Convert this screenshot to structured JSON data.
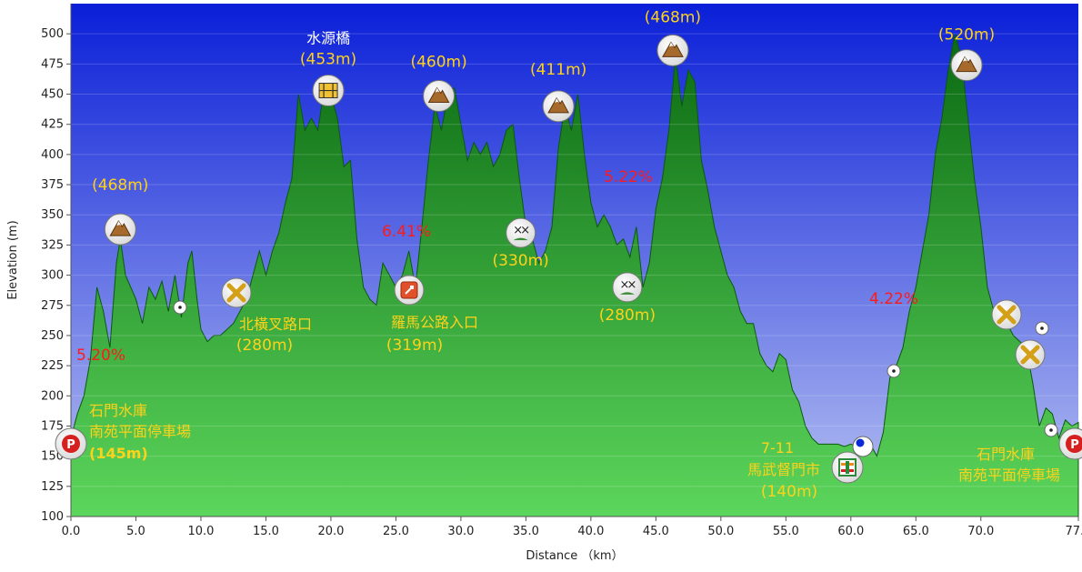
{
  "chart_data": {
    "type": "area",
    "xlabel": "Distance （km）",
    "ylabel": "Elevation (m)",
    "xlim": [
      0,
      77.5
    ],
    "ylim": [
      100,
      525
    ],
    "x_ticks": [
      "0.0",
      "5.0",
      "10.0",
      "15.0",
      "20.0",
      "25.0",
      "30.0",
      "35.0",
      "40.0",
      "45.0",
      "50.0",
      "55.0",
      "60.0",
      "65.0",
      "70.0",
      "77.5"
    ],
    "y_ticks": [
      "100",
      "125",
      "150",
      "175",
      "200",
      "225",
      "250",
      "275",
      "300",
      "325",
      "350",
      "375",
      "400",
      "425",
      "450",
      "475",
      "500"
    ],
    "grid": true,
    "colors": {
      "sky_top": "#0a1fd8",
      "sky_bottom": "#b9c3f2",
      "fill_top": "#0b6a12",
      "fill_bottom": "#5cd65c",
      "peak_label": "#ffd21a",
      "grade_label": "#ff1a1a"
    },
    "profile": {
      "x": [
        0.0,
        0.5,
        1.0,
        1.5,
        2.0,
        2.5,
        3.0,
        3.5,
        3.8,
        4.2,
        5.0,
        5.5,
        6.0,
        6.5,
        7.0,
        7.5,
        8.0,
        8.5,
        9.0,
        9.3,
        9.7,
        10.0,
        10.5,
        11.0,
        11.5,
        12.0,
        12.5,
        13.0,
        13.5,
        14.0,
        14.5,
        15.0,
        15.5,
        16.0,
        16.5,
        17.0,
        17.5,
        18.0,
        18.5,
        19.0,
        19.5,
        20.0,
        20.5,
        21.0,
        21.5,
        22.0,
        22.5,
        23.0,
        23.5,
        24.0,
        24.5,
        25.0,
        25.5,
        26.0,
        26.5,
        27.0,
        27.5,
        28.0,
        28.5,
        29.0,
        29.5,
        30.0,
        30.5,
        31.0,
        31.5,
        32.0,
        32.5,
        33.0,
        33.5,
        34.0,
        34.5,
        35.0,
        35.5,
        36.0,
        36.5,
        37.0,
        37.5,
        38.0,
        38.5,
        39.0,
        39.5,
        40.0,
        40.5,
        41.0,
        41.5,
        42.0,
        42.5,
        43.0,
        43.5,
        44.0,
        44.5,
        45.0,
        45.5,
        46.0,
        46.5,
        47.0,
        47.5,
        48.0,
        48.5,
        49.0,
        49.5,
        50.0,
        50.5,
        51.0,
        51.5,
        52.0,
        52.5,
        53.0,
        53.5,
        54.0,
        54.5,
        55.0,
        55.5,
        56.0,
        56.5,
        57.0,
        57.5,
        58.0,
        58.5,
        59.0,
        59.5,
        60.0,
        60.5,
        61.0,
        61.5,
        62.0,
        62.5,
        63.0,
        63.5,
        64.0,
        64.5,
        65.0,
        65.5,
        66.0,
        66.5,
        67.0,
        67.5,
        68.0,
        68.5,
        69.0,
        69.5,
        70.0,
        70.5,
        71.0,
        71.5,
        72.0,
        72.5,
        73.0,
        73.5,
        74.0,
        74.5,
        75.0,
        75.5,
        76.0,
        76.5,
        77.0,
        77.5
      ],
      "y": [
        165,
        185,
        200,
        230,
        290,
        270,
        240,
        310,
        330,
        300,
        280,
        260,
        290,
        280,
        295,
        270,
        300,
        265,
        310,
        320,
        280,
        255,
        245,
        250,
        250,
        255,
        260,
        270,
        280,
        300,
        320,
        300,
        320,
        335,
        360,
        380,
        450,
        420,
        430,
        420,
        455,
        450,
        430,
        390,
        395,
        330,
        290,
        280,
        275,
        310,
        300,
        290,
        300,
        320,
        290,
        340,
        395,
        440,
        420,
        450,
        455,
        425,
        395,
        410,
        400,
        410,
        390,
        400,
        420,
        425,
        380,
        340,
        330,
        310,
        320,
        340,
        405,
        440,
        420,
        450,
        400,
        360,
        340,
        350,
        340,
        325,
        330,
        315,
        340,
        290,
        310,
        355,
        380,
        420,
        480,
        440,
        470,
        460,
        395,
        370,
        340,
        320,
        300,
        290,
        270,
        260,
        260,
        235,
        225,
        220,
        235,
        230,
        205,
        195,
        175,
        165,
        160,
        160,
        160,
        160,
        158,
        160,
        158,
        160,
        160,
        150,
        170,
        215,
        225,
        240,
        270,
        290,
        320,
        350,
        400,
        430,
        470,
        500,
        480,
        430,
        380,
        340,
        290,
        270,
        260,
        260,
        250,
        245,
        240,
        210,
        175,
        190,
        185,
        165,
        180,
        175,
        178
      ]
    },
    "annotations": [
      {
        "label": "(468m)",
        "x": 3.8,
        "y": 335,
        "kind": "peak"
      },
      {
        "label": "(453m)",
        "title": "水源橋",
        "x": 19.8,
        "y": 453,
        "kind": "bridge"
      },
      {
        "label": "(460m)",
        "x": 28.3,
        "y": 450,
        "kind": "peak"
      },
      {
        "label": "(411m)",
        "x": 37.5,
        "y": 443,
        "kind": "peak"
      },
      {
        "label": "(468m)",
        "x": 46.3,
        "y": 487,
        "kind": "peak"
      },
      {
        "label": "(520m)",
        "x": 68.9,
        "y": 474,
        "kind": "peak"
      },
      {
        "label": "(330m)",
        "x": 34.6,
        "y": 335,
        "kind": "junction"
      },
      {
        "label": "(280m)",
        "x": 42.8,
        "y": 290,
        "kind": "junction"
      }
    ],
    "grades": [
      "5.20%",
      "6.41%",
      "5.22%",
      "4.22%"
    ]
  },
  "labels": {
    "start_title_line1": "石門水庫",
    "start_title_line2": "南苑平面停車場",
    "start_elev": "(145m)",
    "end_title_line1": "石門水庫",
    "end_title_line2": "南苑平面停車場",
    "junction1_title": "北橫叉路口",
    "junction1_elev": "(280m)",
    "roma_title": "羅馬公路入口",
    "roma_elev": "(319m)",
    "store_line1": "7-11",
    "store_line2": "馬武督門市",
    "store_elev": "(140m)"
  },
  "icons": {
    "parking": "P",
    "peak": "mountain-icon",
    "bridge": "bridge-icon",
    "crossroad": "crossroad-icon",
    "junction": "junction-icon",
    "road_sign": "road-sign-icon",
    "store": "store-icon",
    "waypoint": "waypoint-icon"
  }
}
